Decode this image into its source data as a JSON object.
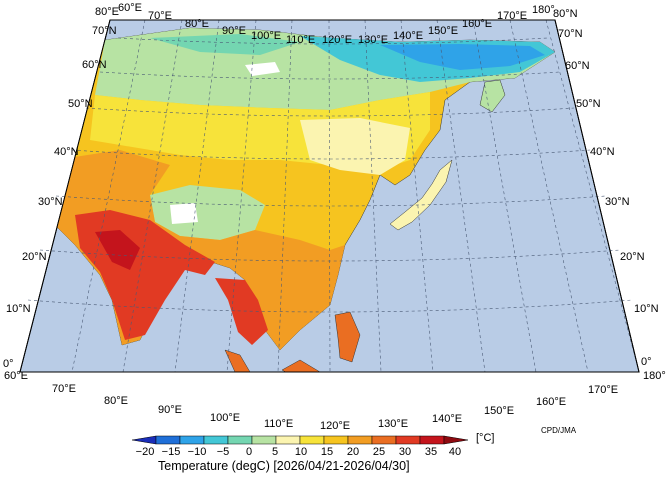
{
  "map": {
    "top_lon_labels": [
      "80°E",
      "60°E",
      "70°E",
      "80°E",
      "90°E",
      "100°E",
      "110°E",
      "120°E",
      "130°E",
      "140°E",
      "150°E",
      "160°E",
      "170°E",
      "180°"
    ],
    "bottom_lon_labels": [
      "60°E",
      "70°E",
      "80°E",
      "90°E",
      "100°E",
      "110°E",
      "120°E",
      "130°E",
      "140°E",
      "150°E",
      "160°E",
      "170°E",
      "180°"
    ],
    "left_lat_labels": [
      "70°N",
      "60°N",
      "50°N",
      "40°N",
      "30°N",
      "20°N",
      "10°N",
      "0°"
    ],
    "right_lat_labels": [
      "80°N",
      "70°N",
      "60°N",
      "50°N",
      "40°N",
      "30°N",
      "20°N",
      "10°N",
      "0°"
    ],
    "ocean_color": "#b9cce6",
    "credit": "CPD/JMA"
  },
  "colorbar": {
    "ticks": [
      "−20",
      "−15",
      "−10",
      "−5",
      "0",
      "5",
      "10",
      "15",
      "20",
      "25",
      "30",
      "35",
      "40"
    ],
    "unit": "[°C]",
    "title": "Temperature (degC) [2026/04/21-2026/04/30]",
    "colors": [
      "#1a2db8",
      "#1f6fd8",
      "#2fa3e8",
      "#43c7d6",
      "#74d6b1",
      "#b7e3a3",
      "#fbf4b0",
      "#f7e33a",
      "#f6c41f",
      "#f29d23",
      "#ea6e22",
      "#e13a23",
      "#c4141c",
      "#8e0a10"
    ]
  }
}
